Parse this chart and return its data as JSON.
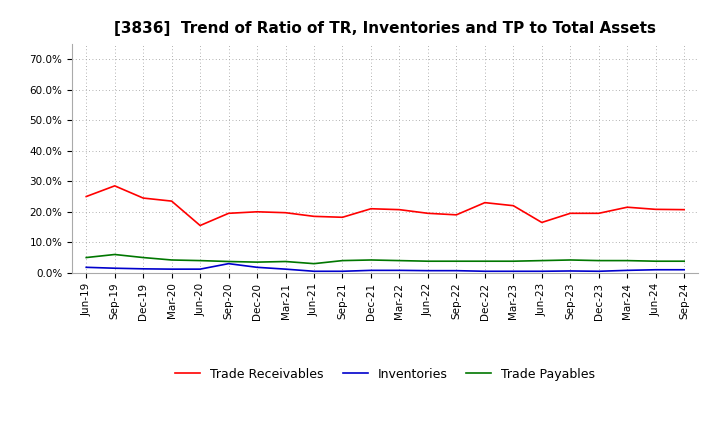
{
  "title": "[3836]  Trend of Ratio of TR, Inventories and TP to Total Assets",
  "x_labels": [
    "Jun-19",
    "Sep-19",
    "Dec-19",
    "Mar-20",
    "Jun-20",
    "Sep-20",
    "Dec-20",
    "Mar-21",
    "Jun-21",
    "Sep-21",
    "Dec-21",
    "Mar-22",
    "Jun-22",
    "Sep-22",
    "Dec-22",
    "Mar-23",
    "Jun-23",
    "Sep-23",
    "Dec-23",
    "Mar-24",
    "Jun-24",
    "Sep-24"
  ],
  "trade_receivables": [
    0.25,
    0.285,
    0.245,
    0.235,
    0.155,
    0.195,
    0.2,
    0.197,
    0.185,
    0.182,
    0.21,
    0.207,
    0.195,
    0.19,
    0.23,
    0.22,
    0.165,
    0.195,
    0.195,
    0.215,
    0.208,
    0.207
  ],
  "inventories": [
    0.018,
    0.015,
    0.013,
    0.012,
    0.012,
    0.03,
    0.018,
    0.012,
    0.005,
    0.005,
    0.008,
    0.008,
    0.007,
    0.007,
    0.005,
    0.005,
    0.005,
    0.006,
    0.005,
    0.008,
    0.01,
    0.01
  ],
  "trade_payables": [
    0.05,
    0.06,
    0.05,
    0.042,
    0.04,
    0.037,
    0.035,
    0.037,
    0.03,
    0.04,
    0.042,
    0.04,
    0.038,
    0.038,
    0.038,
    0.038,
    0.04,
    0.042,
    0.04,
    0.04,
    0.038,
    0.038
  ],
  "tr_color": "#ff0000",
  "inv_color": "#0000cc",
  "tp_color": "#007700",
  "background_color": "#ffffff",
  "plot_bg_color": "#ffffff",
  "grid_color": "#999999",
  "ylim": [
    0.0,
    0.75
  ],
  "yticks": [
    0.0,
    0.1,
    0.2,
    0.3,
    0.4,
    0.5,
    0.6,
    0.7
  ],
  "legend_labels": [
    "Trade Receivables",
    "Inventories",
    "Trade Payables"
  ],
  "title_fontsize": 11,
  "tick_fontsize": 7.5,
  "legend_fontsize": 9
}
